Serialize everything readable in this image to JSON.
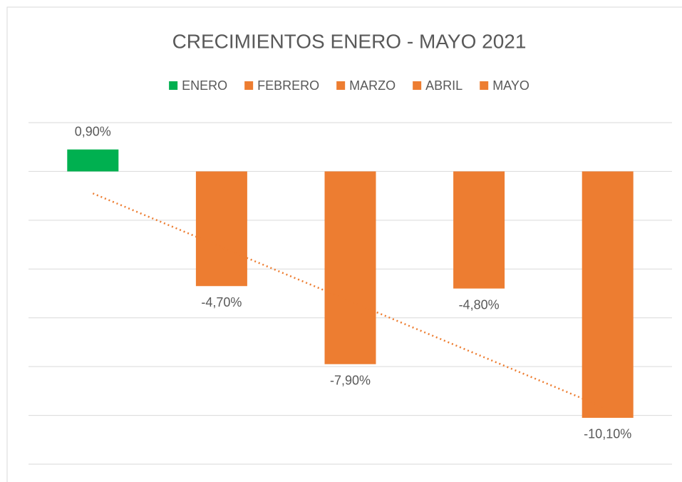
{
  "chart_data": {
    "type": "bar",
    "title": "CRECIMIENTOS ENERO - MAYO 2021",
    "categories": [
      "ENERO",
      "FEBRERO",
      "MARZO",
      "ABRIL",
      "MAYO"
    ],
    "values": [
      0.9,
      -4.7,
      -7.9,
      -4.8,
      -10.1
    ],
    "value_labels": [
      "0,90%",
      "-4,70%",
      "-7,90%",
      "-4,80%",
      "-10,10%"
    ],
    "colors": [
      "#00b050",
      "#ed7d31",
      "#ed7d31",
      "#ed7d31",
      "#ed7d31"
    ],
    "ylim": [
      -12,
      2
    ],
    "yticks": [
      -12,
      -10,
      -8,
      -6,
      -4,
      -2,
      0,
      2
    ],
    "grid": true,
    "legend": "top",
    "trendline": "linear",
    "trendline_color": "#ed7d31"
  }
}
